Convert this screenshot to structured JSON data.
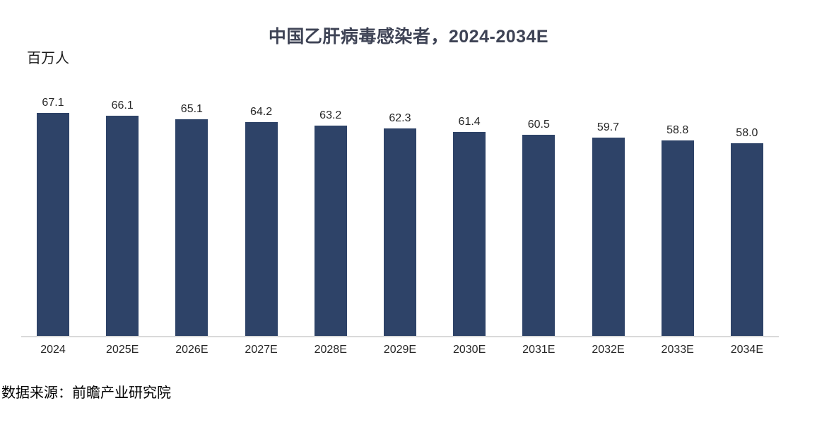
{
  "chart_data": {
    "type": "bar",
    "title": "中国乙肝病毒感染者，2024-2034E",
    "unit_label": "百万人",
    "categories": [
      "2024",
      "2025E",
      "2026E",
      "2027E",
      "2028E",
      "2029E",
      "2030E",
      "2031E",
      "2032E",
      "2033E",
      "2034E"
    ],
    "values": [
      67.1,
      66.1,
      65.1,
      64.2,
      63.2,
      62.3,
      61.4,
      60.5,
      59.7,
      58.8,
      58.0
    ],
    "xlabel": "",
    "ylabel": "百万人",
    "ylim": [
      0,
      70
    ],
    "grid": false,
    "legend": "none",
    "bar_color": "#2e4368",
    "axis_line_color": "#d9d9d9"
  },
  "source": {
    "text": "数据来源：前瞻产业研究院"
  }
}
